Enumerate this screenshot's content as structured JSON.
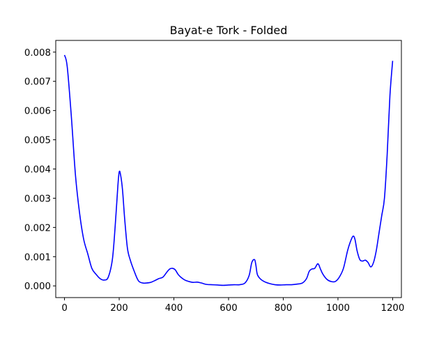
{
  "chart_data": {
    "type": "line",
    "title": "Bayat-e Tork - Folded",
    "xlabel": "",
    "ylabel": "",
    "xlim": [
      -32,
      1232
    ],
    "ylim": [
      -0.0004,
      0.0084
    ],
    "grid": false,
    "x_ticks": [
      0,
      200,
      400,
      600,
      800,
      1000,
      1200
    ],
    "x_tick_labels": [
      "0",
      "200",
      "400",
      "600",
      "800",
      "1000",
      "1200"
    ],
    "y_ticks": [
      0.0,
      0.001,
      0.002,
      0.003,
      0.004,
      0.005,
      0.006,
      0.007,
      0.008
    ],
    "y_tick_labels": [
      "0.000",
      "0.001",
      "0.002",
      "0.003",
      "0.004",
      "0.005",
      "0.006",
      "0.007",
      "0.008"
    ],
    "series": [
      {
        "color": "#0000ff",
        "x": [
          0,
          10,
          25,
          40,
          55,
          70,
          85,
          100,
          115,
          130,
          145,
          160,
          175,
          185,
          195,
          200,
          205,
          212,
          220,
          230,
          240,
          255,
          270,
          285,
          300,
          315,
          330,
          345,
          360,
          375,
          385,
          395,
          405,
          415,
          425,
          440,
          455,
          470,
          485,
          500,
          520,
          540,
          560,
          580,
          600,
          620,
          640,
          660,
          675,
          685,
          695,
          700,
          705,
          715,
          730,
          750,
          770,
          790,
          810,
          830,
          850,
          870,
          885,
          895,
          905,
          915,
          925,
          930,
          935,
          945,
          960,
          975,
          990,
          1005,
          1020,
          1035,
          1045,
          1055,
          1062,
          1070,
          1080,
          1090,
          1100,
          1110,
          1120,
          1130,
          1140,
          1150,
          1160,
          1170,
          1180,
          1190,
          1200
        ],
        "y": [
          0.0079,
          0.0075,
          0.0058,
          0.0038,
          0.0025,
          0.0016,
          0.0011,
          0.0006,
          0.0004,
          0.00025,
          0.0002,
          0.0003,
          0.0009,
          0.002,
          0.0034,
          0.0039,
          0.0038,
          0.0033,
          0.0023,
          0.0013,
          0.0009,
          0.0005,
          0.00018,
          0.0001,
          0.0001,
          0.00012,
          0.00018,
          0.00025,
          0.0003,
          0.00048,
          0.00058,
          0.0006,
          0.00055,
          0.0004,
          0.0003,
          0.0002,
          0.00015,
          0.00012,
          0.00013,
          0.0001,
          5e-05,
          4e-05,
          3e-05,
          2e-05,
          3e-05,
          4e-05,
          4e-05,
          0.0001,
          0.00035,
          0.0008,
          0.0009,
          0.0007,
          0.0004,
          0.00025,
          0.00015,
          8e-05,
          4e-05,
          3e-05,
          4e-05,
          4e-05,
          6e-05,
          0.0001,
          0.00025,
          0.0005,
          0.00058,
          0.0006,
          0.00075,
          0.00072,
          0.0006,
          0.0004,
          0.00022,
          0.00015,
          0.00015,
          0.0003,
          0.0006,
          0.0012,
          0.0015,
          0.0017,
          0.0016,
          0.0012,
          0.0009,
          0.00085,
          0.00088,
          0.0008,
          0.00065,
          0.0008,
          0.0012,
          0.0018,
          0.0024,
          0.003,
          0.0045,
          0.0065,
          0.0077
        ]
      }
    ]
  }
}
